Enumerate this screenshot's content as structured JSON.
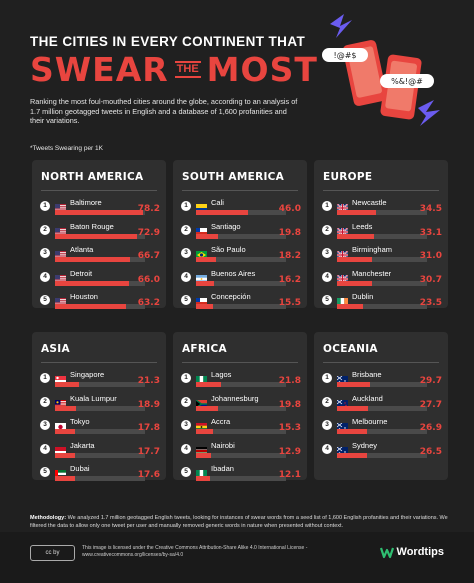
{
  "header": {
    "title_line1": "THE CITIES IN EVERY CONTINENT THAT",
    "title_word1": "SWEAR",
    "title_the": "THE",
    "title_word2": "MOST",
    "intro": "Ranking the most foul-mouthed cities around the globe, according to an analysis of 1.7 million geotagged tweets in English and a database of 1,600 profanities and their variations.",
    "unit_note": "*Tweets Swearing per 1K",
    "bubble1": "!@#$",
    "bubble2": "%&!@#"
  },
  "colors": {
    "background": "#202020",
    "panel": "#2f2f2f",
    "accent": "#e8453f",
    "track": "#4a4a4a"
  },
  "chart_data": [
    {
      "type": "bar",
      "title": "NORTH AMERICA",
      "xlim": [
        0,
        80
      ],
      "categories": [
        "Baltimore",
        "Baton Rouge",
        "Atlanta",
        "Detroit",
        "Houston"
      ],
      "values": [
        78.2,
        72.9,
        66.7,
        66.0,
        63.2
      ],
      "labels": [
        "78.2",
        "72.9",
        "66.7",
        "66.0",
        "63.2"
      ],
      "flags": [
        "us",
        "us",
        "us",
        "us",
        "us"
      ]
    },
    {
      "type": "bar",
      "title": "SOUTH AMERICA",
      "xlim": [
        0,
        80
      ],
      "categories": [
        "Cali",
        "Santiago",
        "São Paulo",
        "Buenos Aires",
        "Concepción"
      ],
      "values": [
        46.0,
        19.8,
        18.2,
        16.2,
        15.5
      ],
      "labels": [
        "46.0",
        "19.8",
        "18.2",
        "16.2",
        "15.5"
      ],
      "flags": [
        "co",
        "cl",
        "br",
        "ar",
        "cl"
      ]
    },
    {
      "type": "bar",
      "title": "EUROPE",
      "xlim": [
        0,
        80
      ],
      "categories": [
        "Newcastle",
        "Leeds",
        "Birmingham",
        "Manchester",
        "Dublin"
      ],
      "values": [
        34.5,
        33.1,
        31.0,
        30.7,
        23.5
      ],
      "labels": [
        "34.5",
        "33.1",
        "31.0",
        "30.7",
        "23.5"
      ],
      "flags": [
        "gb",
        "gb",
        "gb",
        "gb",
        "ie"
      ]
    },
    {
      "type": "bar",
      "title": "ASIA",
      "xlim": [
        0,
        80
      ],
      "categories": [
        "Singapore",
        "Kuala Lumpur",
        "Tokyo",
        "Jakarta",
        "Dubai"
      ],
      "values": [
        21.3,
        18.9,
        17.8,
        17.7,
        17.6
      ],
      "labels": [
        "21.3",
        "18.9",
        "17.8",
        "17.7",
        "17.6"
      ],
      "flags": [
        "sg",
        "my",
        "jp",
        "id",
        "ae"
      ]
    },
    {
      "type": "bar",
      "title": "AFRICA",
      "xlim": [
        0,
        80
      ],
      "categories": [
        "Lagos",
        "Johannesburg",
        "Accra",
        "Nairobi",
        "Ibadan"
      ],
      "values": [
        21.8,
        19.8,
        15.3,
        12.9,
        12.1
      ],
      "labels": [
        "21.8",
        "19.8",
        "15.3",
        "12.9",
        "12.1"
      ],
      "flags": [
        "ng",
        "za",
        "gh",
        "ke",
        "ng"
      ]
    },
    {
      "type": "bar",
      "title": "OCEANIA",
      "xlim": [
        0,
        80
      ],
      "categories": [
        "Brisbane",
        "Auckland",
        "Melbourne",
        "Sydney"
      ],
      "values": [
        29.7,
        27.7,
        26.9,
        26.5
      ],
      "labels": [
        "29.7",
        "27.7",
        "26.9",
        "26.5"
      ],
      "flags": [
        "au",
        "nz",
        "au",
        "au"
      ]
    }
  ],
  "footer": {
    "method_label": "Methodology:",
    "method_text": "We analyzed 1.7 million geotagged English tweets, looking for instances of swear words from a seed list of 1,600 English profanities and their variations. We filtered the data to allow only one tweet per user and manually removed generic words in nature when presented without context.",
    "cc_badge": "cc by",
    "license": "This image is licensed under the Creative Commons Attribution-Share Alike 4.0 International License - www.creativecommons.org/licenses/by-sa/4.0",
    "brand": "Wordtips"
  }
}
